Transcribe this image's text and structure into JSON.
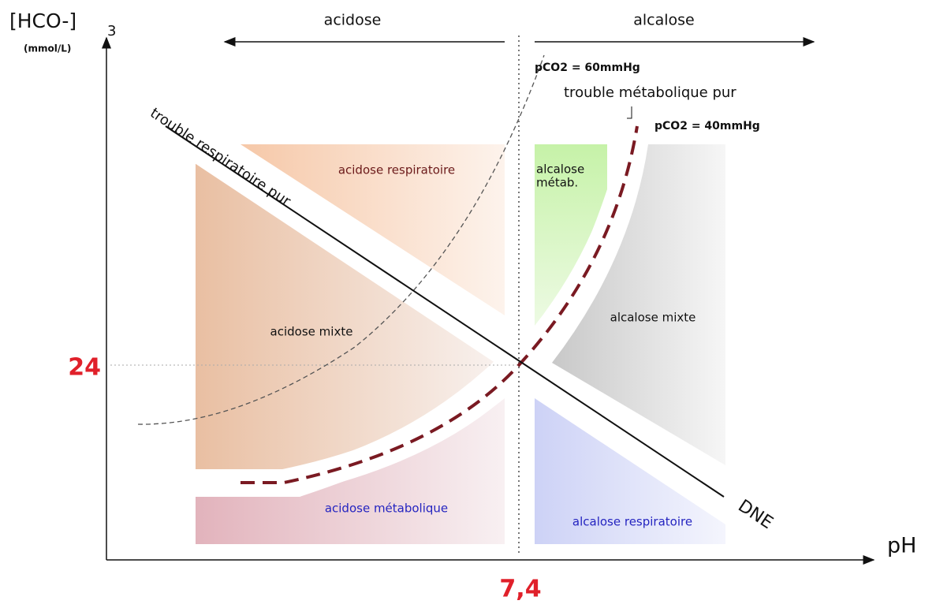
{
  "axes": {
    "y_label": "[HCO-]",
    "y_label_sub": "3",
    "y_unit": "(mmol/L)",
    "x_label": "pH",
    "y_ref": "24",
    "x_ref": "7,4"
  },
  "header": {
    "left": "acidose",
    "right": "alcalose"
  },
  "curves": {
    "pco2_60": "pCO2 = 60mmHg",
    "pco2_40": "pCO2 = 40mmHg",
    "metabolic": "trouble métabolique pur",
    "respiratory": "trouble respiratoire pur",
    "dne": "DNE"
  },
  "regions": {
    "acidose_respiratoire": "acidose respiratoire",
    "acidose_mixte": "acidose mixte",
    "acidose_metabolique": "acidose métabolique",
    "alcalose_metab": [
      "alcalose",
      "métab."
    ],
    "alcalose_mixte": "alcalose mixte",
    "alcalose_respiratoire": "alcalose respiratoire"
  }
}
